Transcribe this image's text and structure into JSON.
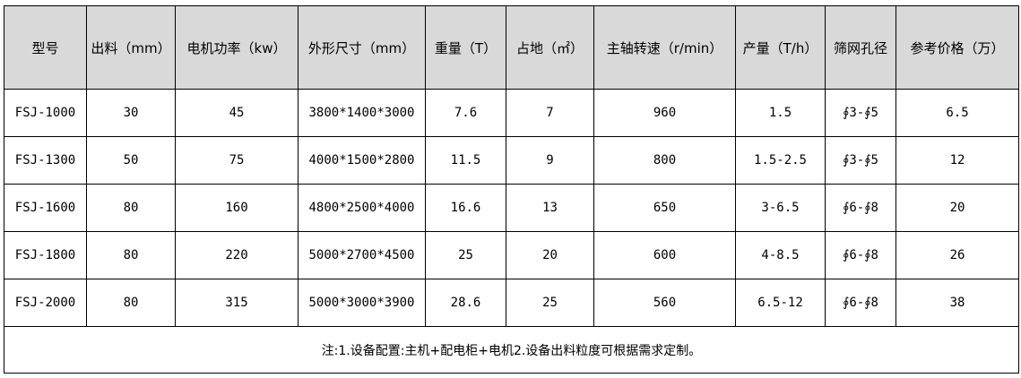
{
  "table": {
    "headers": [
      "型号",
      "出料（mm）",
      "电机功率（kw）",
      "外形尺寸（mm）",
      "重量（T）",
      "占地（㎡）",
      "主轴转速（r/min）",
      "产量（T/h）",
      "筛网孔径",
      "参考价格（万）"
    ],
    "rows": [
      [
        "FSJ-1000",
        "30",
        "45",
        "3800*1400*3000",
        "7.6",
        "7",
        "960",
        "1.5",
        "∮3-∮5",
        "6.5"
      ],
      [
        "FSJ-1300",
        "50",
        "75",
        "4000*1500*2800",
        "11.5",
        "9",
        "800",
        "1.5-2.5",
        "∮3-∮5",
        "12"
      ],
      [
        "FSJ-1600",
        "80",
        "160",
        "4800*2500*4000",
        "16.6",
        "13",
        "650",
        "3-6.5",
        "∮6-∮8",
        "20"
      ],
      [
        "FSJ-1800",
        "80",
        "220",
        "5000*2700*4500",
        "25",
        "20",
        "600",
        "4-8.5",
        "∮6-∮8",
        "26"
      ],
      [
        "FSJ-2000",
        "80",
        "315",
        "5000*3000*3900",
        "28.6",
        "25",
        "560",
        "6.5-12",
        "∮6-∮8",
        "38"
      ]
    ],
    "note": "注:1.设备配置:主机+配电柜+电机2.设备出料粒度可根据需求定制。"
  },
  "colors": {
    "header_bg": "#d9d9d9",
    "border": "#000000"
  }
}
